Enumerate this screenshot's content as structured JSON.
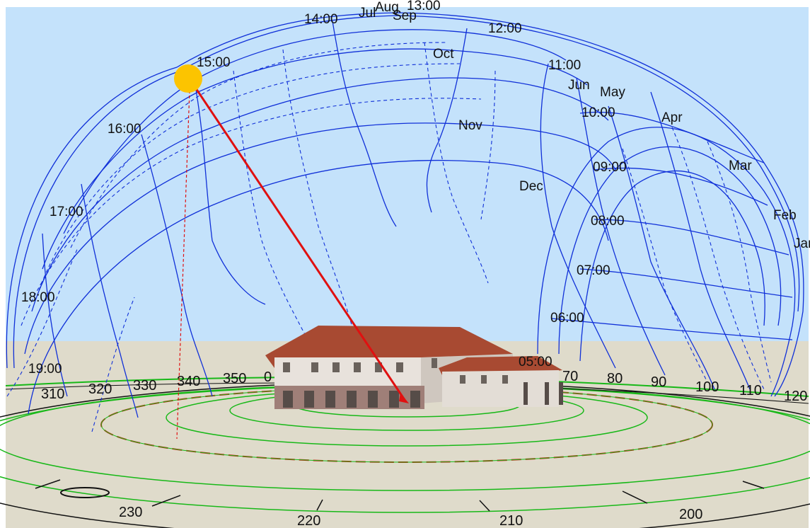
{
  "colors": {
    "sky": "#c4e2fb",
    "ground": "#dfdbcb",
    "sunpath": "#1030d8",
    "sun": "#fcc400",
    "sun_ray": "#e01010",
    "rings": "#18b818",
    "critical_ring": "#d81818",
    "roof": "#a84a32",
    "wall": "#e8e2dc"
  },
  "sun": {
    "label": "sun",
    "icon": "sun-disc-icon"
  },
  "hour_labels": [
    "14:00",
    "15:00",
    "16:00",
    "17:00",
    "18:00",
    "19:00",
    "12:00",
    "11:00",
    "10:00",
    "09:00",
    "08:00",
    "07:00",
    "06:00",
    "05:00"
  ],
  "month_labels": [
    "Jul",
    "Aug",
    "Sep",
    "Oct",
    "Nov",
    "Dec",
    "Jun",
    "May",
    "Apr",
    "Mar",
    "Feb",
    "Jan",
    "13:00"
  ],
  "azimuth_labels": [
    "310",
    "320",
    "330",
    "340",
    "350",
    "0",
    "70",
    "80",
    "90",
    "100",
    "110",
    "120",
    "230",
    "220",
    "210",
    "200"
  ]
}
